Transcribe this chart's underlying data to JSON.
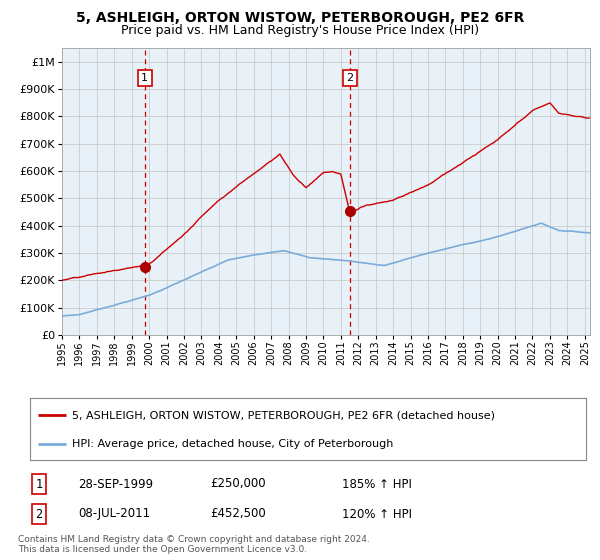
{
  "title": "5, ASHLEIGH, ORTON WISTOW, PETERBOROUGH, PE2 6FR",
  "subtitle": "Price paid vs. HM Land Registry's House Price Index (HPI)",
  "ylim": [
    0,
    1050000
  ],
  "xlim_start": 1995.0,
  "xlim_end": 2025.3,
  "plot_bg_color": "#e8f0f8",
  "grid_color": "#cccccc",
  "sale1_x": 1999.75,
  "sale1_y": 250000,
  "sale2_x": 2011.52,
  "sale2_y": 452500,
  "legend_line1": "5, ASHLEIGH, ORTON WISTOW, PETERBOROUGH, PE2 6FR (detached house)",
  "legend_line2": "HPI: Average price, detached house, City of Peterborough",
  "note1_date": "28-SEP-1999",
  "note1_price": "£250,000",
  "note1_hpi": "185% ↑ HPI",
  "note2_date": "08-JUL-2011",
  "note2_price": "£452,500",
  "note2_hpi": "120% ↑ HPI",
  "footer": "Contains HM Land Registry data © Crown copyright and database right 2024.\nThis data is licensed under the Open Government Licence v3.0.",
  "red_color": "#cc0000",
  "blue_color": "#7aabdb",
  "marker_color": "#aa0000",
  "title_fontsize": 10,
  "subtitle_fontsize": 9
}
